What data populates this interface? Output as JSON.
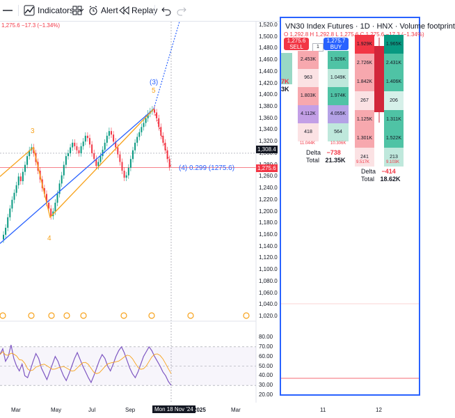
{
  "toolbar": {
    "indicators_label": "Indicators",
    "alert_label": "Alert",
    "replay_label": "Replay"
  },
  "left_chart": {
    "ohlc_change": "1,275.6  −17.3 (−1.34%)",
    "wave_labels": {
      "w3_left": "3",
      "w4_left": "4",
      "w3_paren": "(3)",
      "w5": "5",
      "w4_annotation": "(4) 0.299 (1275.6)"
    },
    "price_axis": [
      "1,520.0",
      "1,500.0",
      "1,480.0",
      "1,460.0",
      "1,440.0",
      "1,420.0",
      "1,400.0",
      "1,380.0",
      "1,360.0",
      "1,340.0",
      "1,320.0",
      "1,300.0",
      "1,280.0",
      "1,260.0",
      "1,240.0",
      "1,220.0",
      "1,200.0",
      "1,180.0",
      "1,160.0",
      "1,140.0",
      "1,120.0",
      "1,100.0",
      "1,080.0",
      "1,060.0",
      "1,040.0",
      "1,020.0"
    ],
    "price_tag_last": "1,308.4",
    "price_tag_current": "1,275.6",
    "rsi_axis": [
      "80.00",
      "70.00",
      "60.00",
      "50.00",
      "40.00",
      "30.00",
      "20.00"
    ],
    "time_axis": [
      "Mar",
      "May",
      "Jul",
      "Sep",
      "2025",
      "Mar"
    ],
    "crosshair_date": "Mon 18 Nov '24",
    "colors": {
      "up": "#089981",
      "down": "#f23645",
      "blue_line": "#2962ff",
      "orange_line": "#f7a21b",
      "rsi": "#7e57c2"
    }
  },
  "footprint": {
    "title": "VN30 Index Futures · 1D · HNX · Volume footprint",
    "ohlc": "O 1,292.8  H 1,292.8  L 1,275.6  C 1,275.6  −17.3 (−1.34%)",
    "sell": {
      "price": "1,275.6",
      "label": "SELL"
    },
    "buy": {
      "price": "1,275.7",
      "label": "BUY"
    },
    "qty": "1",
    "col1": [
      "2.453K",
      "963",
      "1.803K",
      "4.112K",
      "418"
    ],
    "col1_total": "11.044K",
    "col2": [
      "1.926K",
      "1.049K",
      "1.974K",
      "4.055K",
      "564"
    ],
    "col2_total": "10.306K",
    "col3": [
      "1.929K",
      "2.726K",
      "1.842K",
      "267",
      "1.125K",
      "1.301K",
      "241"
    ],
    "col3_total": "9.517K",
    "col4": [
      "1.965K",
      "2.431K",
      "1.406K",
      "206",
      "1.311K",
      "1.522K",
      "213"
    ],
    "col4_total": "9.103K",
    "delta1": {
      "delta_label": "Delta",
      "delta_value": "−738",
      "total_label": "Total",
      "total_value": "21.35K"
    },
    "delta2": {
      "delta_label": "Delta",
      "delta_value": "−414",
      "total_label": "Total",
      "total_value": "18.62K"
    },
    "side_letters": [
      "7K",
      "3K"
    ],
    "time_axis": [
      "11",
      "12"
    ]
  }
}
